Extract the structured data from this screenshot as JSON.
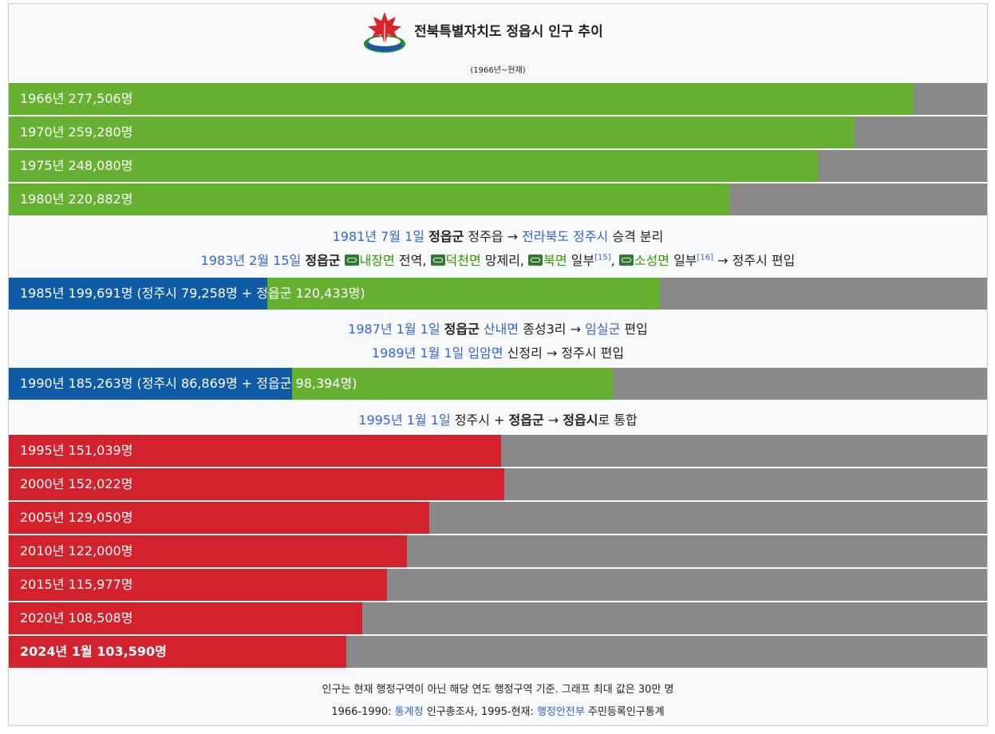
{
  "header": {
    "title": "전북특별자치도 정읍시 인구 추이",
    "subtitle": "(1966년~현재)"
  },
  "colors": {
    "green": "#66b032",
    "blue": "#0f5ba6",
    "red": "#d1222e",
    "gray": "#898989",
    "link": "#3366cc"
  },
  "chart_data": {
    "type": "bar",
    "orientation": "horizontal",
    "xlim": [
      0,
      300000
    ],
    "bars": [
      {
        "label": "1966년 277,506명",
        "segments": [
          {
            "color": "green",
            "value": 277506
          }
        ]
      },
      {
        "label": "1970년 259,280명",
        "segments": [
          {
            "color": "green",
            "value": 259280
          }
        ]
      },
      {
        "label": "1975년 248,080명",
        "segments": [
          {
            "color": "green",
            "value": 248080
          }
        ]
      },
      {
        "label": "1980년 220,882명",
        "segments": [
          {
            "color": "green",
            "value": 220882
          }
        ]
      },
      {
        "label": "1985년 199,691명 (정주시 79,258명 + 정읍군 120,433명)",
        "segments": [
          {
            "color": "blue",
            "value": 79258
          },
          {
            "color": "green",
            "value": 120433
          }
        ]
      },
      {
        "label": "1990년 185,263명 (정주시 86,869명 + 정읍군 98,394명)",
        "segments": [
          {
            "color": "blue",
            "value": 86869
          },
          {
            "color": "green",
            "value": 98394
          }
        ]
      },
      {
        "label": "1995년 151,039명",
        "segments": [
          {
            "color": "red",
            "value": 151039
          }
        ]
      },
      {
        "label": "2000년 152,022명",
        "segments": [
          {
            "color": "red",
            "value": 152022
          }
        ]
      },
      {
        "label": "2005년 129,050명",
        "segments": [
          {
            "color": "red",
            "value": 129050
          }
        ]
      },
      {
        "label": "2010년 122,000명",
        "segments": [
          {
            "color": "red",
            "value": 122000
          }
        ]
      },
      {
        "label": "2015년 115,977명",
        "segments": [
          {
            "color": "red",
            "value": 115977
          }
        ]
      },
      {
        "label": "2020년 108,508명",
        "segments": [
          {
            "color": "red",
            "value": 108508
          }
        ]
      },
      {
        "label": "2024년 1월 103,590명",
        "segments": [
          {
            "color": "red",
            "value": 103590
          }
        ],
        "bold": true
      }
    ]
  },
  "notes": {
    "n1": {
      "date": "1981년 7월 1일",
      "county": "정읍군",
      "t1": "정주읍 →",
      "city": "전라북도 정주시",
      "t2": "승격 분리"
    },
    "n2": {
      "date": "1983년 2월 15일",
      "county": "정읍군",
      "a": "내장면",
      "a_t": "전역,",
      "b": "덕천면",
      "b_t": "망제리,",
      "c": "북면",
      "c_t": "일부",
      "c_ref": "[15]",
      "d": "소성면",
      "d_t": "일부",
      "d_ref": "[16]",
      "end": "→ 정주시 편입"
    },
    "n3": {
      "date": "1987년 1월 1일",
      "county": "정읍군",
      "place": "산내면",
      "t1": "종성3리 →",
      "target": "임실군",
      "t2": "편입"
    },
    "n4": {
      "date": "1989년 1월 1일",
      "place": "입암면",
      "t1": "신정리 → 정주시 편입"
    },
    "n5": {
      "date": "1995년 1월 1일",
      "t1": "정주시 +",
      "county": "정읍군",
      "t2": "→",
      "city": "정읍시",
      "t3": "로 통합"
    }
  },
  "footer": {
    "line1": "인구는 현재 행정구역이 아닌 해당 연도 행정구역 기준. 그래프 최대 값은 30만 명",
    "l2_a": "1966-1990:",
    "l2_src1": "통계청",
    "l2_b": "인구총조사, 1995-현재:",
    "l2_src2": "행정안전부",
    "l2_c": "주민등록인구통계"
  }
}
